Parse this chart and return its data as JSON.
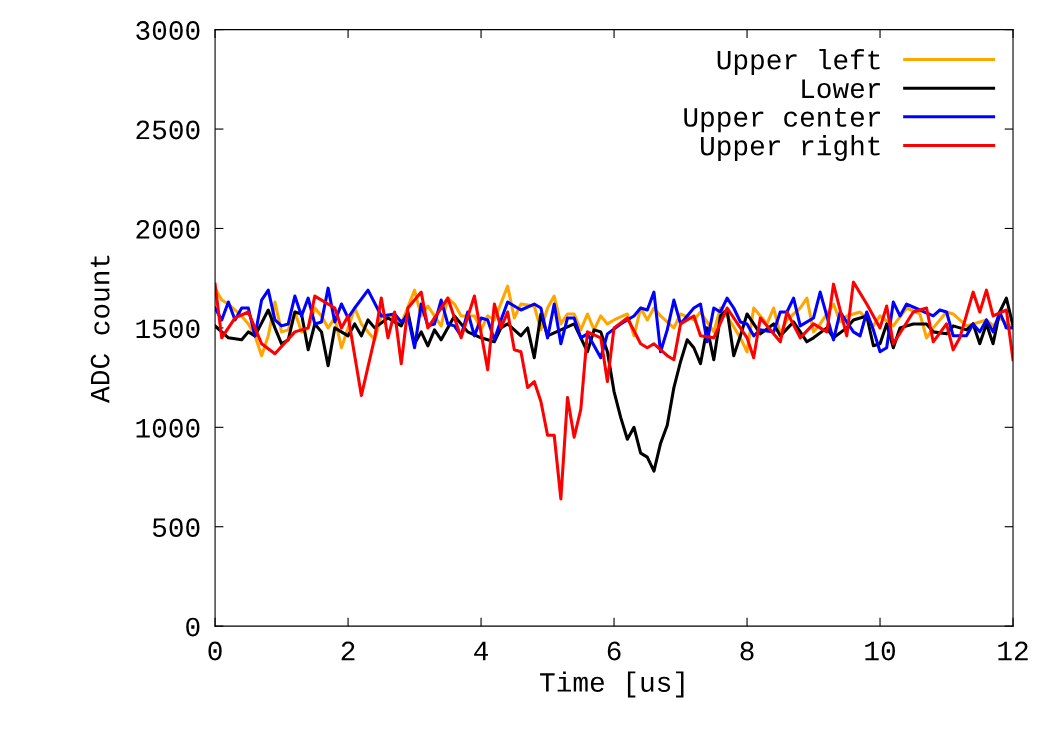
{
  "chart_data": {
    "type": "line",
    "xlabel": "Time [us]",
    "ylabel": "ADC count",
    "xlim": [
      0,
      12
    ],
    "ylim": [
      0,
      3000
    ],
    "xticks": [
      0,
      2,
      4,
      6,
      8,
      10,
      12
    ],
    "yticks": [
      0,
      500,
      1000,
      1500,
      2000,
      2500,
      3000
    ],
    "grid": false,
    "legend": "top right",
    "marker": "none",
    "line_style": "solid",
    "series": [
      {
        "name": "Upper left",
        "color": "#ffa500",
        "x": [
          0,
          0.1,
          0.2,
          0.4,
          0.5,
          0.6,
          0.7,
          0.8,
          0.9,
          1.0,
          1.1,
          1.2,
          1.3,
          1.4,
          1.5,
          1.6,
          1.7,
          1.8,
          1.9,
          2.0,
          2.1,
          2.2,
          2.4,
          2.5,
          2.7,
          2.8,
          3.0,
          3.1,
          3.2,
          3.4,
          3.5,
          3.6,
          3.7,
          3.9,
          4.0,
          4.1,
          4.2,
          4.4,
          4.5,
          4.6,
          4.8,
          4.9,
          5.0,
          5.1,
          5.2,
          5.3,
          5.4,
          5.5,
          5.6,
          5.7,
          5.8,
          5.9,
          6.0,
          6.2,
          6.3,
          6.4,
          6.5,
          6.6,
          6.7,
          6.9,
          7.0,
          7.2,
          7.3,
          7.5,
          7.6,
          7.7,
          7.9,
          8.0,
          8.1,
          8.3,
          8.4,
          8.5,
          8.6,
          8.8,
          8.9,
          9.0,
          9.1,
          9.3,
          9.4,
          9.5,
          9.7,
          9.9,
          10.0,
          10.2,
          10.4,
          10.6,
          10.7,
          10.8,
          11.0,
          11.1,
          11.3,
          11.4,
          11.6,
          11.7,
          11.8,
          12.0
        ],
        "values": [
          1700,
          1640,
          1620,
          1560,
          1520,
          1460,
          1360,
          1460,
          1630,
          1480,
          1490,
          1580,
          1480,
          1500,
          1600,
          1560,
          1500,
          1550,
          1400,
          1500,
          1600,
          1520,
          1440,
          1560,
          1560,
          1520,
          1690,
          1560,
          1610,
          1510,
          1650,
          1620,
          1560,
          1560,
          1490,
          1560,
          1540,
          1710,
          1550,
          1620,
          1610,
          1490,
          1600,
          1660,
          1520,
          1570,
          1570,
          1490,
          1570,
          1490,
          1560,
          1520,
          1540,
          1570,
          1460,
          1600,
          1540,
          1600,
          1560,
          1500,
          1570,
          1540,
          1580,
          1480,
          1600,
          1560,
          1450,
          1380,
          1600,
          1520,
          1600,
          1470,
          1540,
          1600,
          1650,
          1480,
          1520,
          1620,
          1530,
          1560,
          1580,
          1510,
          1560,
          1510,
          1600,
          1570,
          1450,
          1500,
          1580,
          1570,
          1510,
          1520,
          1540,
          1510,
          1550,
          1500
        ]
      },
      {
        "name": "Lower",
        "color": "#000000",
        "x": [
          0,
          0.2,
          0.4,
          0.5,
          0.6,
          0.8,
          0.9,
          1.0,
          1.1,
          1.2,
          1.3,
          1.4,
          1.5,
          1.6,
          1.7,
          1.8,
          2.0,
          2.1,
          2.2,
          2.3,
          2.4,
          2.6,
          2.8,
          2.9,
          3.0,
          3.1,
          3.2,
          3.3,
          3.4,
          3.6,
          3.8,
          4.0,
          4.2,
          4.3,
          4.4,
          4.6,
          4.7,
          4.8,
          4.9,
          5.0,
          5.2,
          5.4,
          5.6,
          5.7,
          5.8,
          5.9,
          6.0,
          6.1,
          6.2,
          6.3,
          6.4,
          6.5,
          6.6,
          6.7,
          6.8,
          6.9,
          7.0,
          7.1,
          7.2,
          7.3,
          7.4,
          7.5,
          7.6,
          7.7,
          7.8,
          7.9,
          8.0,
          8.2,
          8.4,
          8.5,
          8.7,
          8.9,
          9.0,
          9.2,
          9.3,
          9.5,
          9.6,
          9.8,
          9.9,
          10.0,
          10.1,
          10.2,
          10.3,
          10.5,
          10.7,
          10.8,
          11.0,
          11.1,
          11.3,
          11.4,
          11.5,
          11.6,
          11.7,
          11.8,
          11.9,
          12.0
        ],
        "values": [
          1510,
          1450,
          1440,
          1480,
          1460,
          1590,
          1500,
          1420,
          1440,
          1580,
          1570,
          1390,
          1520,
          1480,
          1310,
          1500,
          1460,
          1520,
          1460,
          1540,
          1500,
          1550,
          1510,
          1580,
          1420,
          1480,
          1410,
          1490,
          1440,
          1560,
          1480,
          1450,
          1430,
          1500,
          1520,
          1460,
          1500,
          1350,
          1570,
          1460,
          1490,
          1520,
          1380,
          1490,
          1480,
          1380,
          1180,
          1050,
          940,
          1000,
          870,
          850,
          780,
          920,
          1010,
          1200,
          1330,
          1440,
          1400,
          1320,
          1500,
          1340,
          1560,
          1590,
          1360,
          1460,
          1570,
          1470,
          1520,
          1460,
          1530,
          1430,
          1450,
          1500,
          1450,
          1500,
          1540,
          1560,
          1410,
          1420,
          1520,
          1400,
          1500,
          1520,
          1520,
          1480,
          1470,
          1510,
          1490,
          1520,
          1420,
          1520,
          1420,
          1580,
          1650,
          1510
        ]
      },
      {
        "name": "Upper center",
        "color": "#0000ff",
        "x": [
          0,
          0.1,
          0.2,
          0.3,
          0.4,
          0.5,
          0.6,
          0.7,
          0.8,
          0.9,
          1.0,
          1.1,
          1.2,
          1.3,
          1.4,
          1.5,
          1.6,
          1.7,
          1.8,
          1.9,
          2.0,
          2.1,
          2.3,
          2.5,
          2.7,
          2.8,
          2.9,
          3.0,
          3.1,
          3.2,
          3.3,
          3.4,
          3.5,
          3.6,
          3.7,
          3.8,
          3.9,
          4.0,
          4.1,
          4.2,
          4.3,
          4.4,
          4.6,
          4.8,
          4.9,
          5.0,
          5.1,
          5.2,
          5.3,
          5.4,
          5.5,
          5.6,
          5.8,
          5.9,
          6.1,
          6.3,
          6.4,
          6.5,
          6.6,
          6.7,
          6.8,
          6.9,
          7.0,
          7.2,
          7.3,
          7.4,
          7.5,
          7.6,
          7.7,
          7.8,
          7.9,
          8.0,
          8.1,
          8.2,
          8.4,
          8.5,
          8.6,
          8.7,
          8.8,
          9.0,
          9.1,
          9.3,
          9.4,
          9.6,
          9.7,
          9.8,
          9.9,
          10.0,
          10.1,
          10.2,
          10.3,
          10.4,
          10.6,
          10.8,
          10.9,
          11.0,
          11.1,
          11.3,
          11.4,
          11.5,
          11.6,
          11.7,
          11.8,
          11.9,
          12.0
        ],
        "values": [
          1600,
          1540,
          1630,
          1540,
          1600,
          1600,
          1460,
          1640,
          1690,
          1540,
          1510,
          1520,
          1660,
          1560,
          1650,
          1520,
          1530,
          1700,
          1530,
          1620,
          1550,
          1600,
          1690,
          1560,
          1570,
          1530,
          1560,
          1400,
          1620,
          1510,
          1520,
          1640,
          1520,
          1510,
          1460,
          1580,
          1460,
          1550,
          1540,
          1440,
          1540,
          1630,
          1590,
          1620,
          1600,
          1450,
          1620,
          1420,
          1550,
          1550,
          1450,
          1470,
          1350,
          1470,
          1520,
          1560,
          1600,
          1590,
          1680,
          1380,
          1490,
          1640,
          1520,
          1600,
          1620,
          1430,
          1600,
          1580,
          1650,
          1600,
          1530,
          1520,
          1460,
          1490,
          1480,
          1580,
          1580,
          1650,
          1510,
          1550,
          1680,
          1440,
          1580,
          1480,
          1460,
          1580,
          1490,
          1380,
          1400,
          1630,
          1560,
          1620,
          1590,
          1560,
          1590,
          1580,
          1460,
          1460,
          1520,
          1480,
          1540,
          1480,
          1580,
          1500,
          1500
        ]
      },
      {
        "name": "Upper right",
        "color": "#ff0000",
        "x": [
          0,
          0.1,
          0.3,
          0.5,
          0.7,
          0.9,
          1.2,
          1.4,
          1.5,
          1.8,
          1.9,
          2.0,
          2.2,
          2.4,
          2.5,
          2.6,
          2.7,
          2.8,
          2.9,
          3.1,
          3.2,
          3.5,
          3.7,
          3.9,
          4.1,
          4.2,
          4.3,
          4.4,
          4.5,
          4.6,
          4.7,
          4.8,
          4.9,
          5.0,
          5.1,
          5.2,
          5.3,
          5.4,
          5.5,
          5.6,
          5.8,
          5.9,
          6.0,
          6.2,
          6.4,
          6.5,
          6.6,
          6.8,
          6.9,
          7.0,
          7.2,
          7.3,
          7.5,
          7.7,
          7.9,
          8.0,
          8.1,
          8.2,
          8.5,
          8.6,
          8.8,
          9.0,
          9.2,
          9.3,
          9.5,
          9.6,
          9.8,
          10.0,
          10.1,
          10.2,
          10.5,
          10.7,
          10.8,
          11.0,
          11.1,
          11.2,
          11.4,
          11.5,
          11.6,
          11.7,
          11.9,
          12.0
        ],
        "values": [
          1720,
          1450,
          1550,
          1580,
          1420,
          1370,
          1480,
          1500,
          1660,
          1600,
          1500,
          1560,
          1160,
          1450,
          1650,
          1450,
          1580,
          1320,
          1600,
          1680,
          1500,
          1650,
          1450,
          1660,
          1290,
          1620,
          1500,
          1580,
          1390,
          1380,
          1200,
          1230,
          1130,
          960,
          960,
          640,
          1150,
          950,
          1090,
          1480,
          1450,
          1230,
          1500,
          1550,
          1420,
          1400,
          1420,
          1360,
          1340,
          1520,
          1560,
          1460,
          1450,
          1600,
          1500,
          1450,
          1350,
          1550,
          1430,
          1580,
          1450,
          1520,
          1480,
          1720,
          1460,
          1730,
          1620,
          1500,
          1610,
          1420,
          1580,
          1600,
          1430,
          1520,
          1390,
          1450,
          1680,
          1580,
          1690,
          1560,
          1590,
          1340
        ]
      }
    ]
  }
}
